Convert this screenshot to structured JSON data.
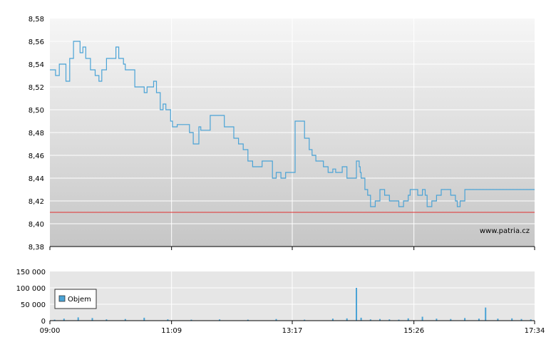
{
  "chart_data": [
    {
      "type": "line",
      "x_ticks": [
        "09:00",
        "11:09",
        "13:17",
        "15:26",
        "17:34"
      ],
      "y_ticks": [
        "8,58",
        "8,56",
        "8,54",
        "8,52",
        "8,50",
        "8,48",
        "8,46",
        "8,44",
        "8,42",
        "8,40",
        "8,38"
      ],
      "ylim": [
        8.38,
        8.58
      ],
      "grid": true,
      "reference_line": 8.41,
      "watermark": "www.patria.cz",
      "colors": {
        "series": "#4aa3d6",
        "reference": "#e03030",
        "grid": "#ffffff",
        "background_top": "#f6f6f6",
        "background_bottom": "#c6c6c6"
      },
      "series": [
        {
          "x": [
            "09:00",
            "09:03",
            "09:06",
            "09:10",
            "09:13",
            "09:17",
            "09:21",
            "09:25",
            "09:32",
            "09:35",
            "09:37",
            "09:38",
            "09:40",
            "09:43",
            "09:48",
            "09:52",
            "09:55",
            "10:00",
            "10:05",
            "10:08",
            "10:10",
            "10:13",
            "10:18",
            "10:20",
            "10:25",
            "10:30",
            "10:35",
            "10:40",
            "10:43",
            "10:46",
            "10:48",
            "10:50",
            "10:53",
            "10:57",
            "11:00",
            "11:03",
            "11:08",
            "11:10",
            "11:13",
            "11:15",
            "11:25",
            "11:28",
            "11:32",
            "11:35",
            "11:38",
            "11:40",
            "11:47",
            "11:50",
            "11:57",
            "12:05",
            "12:15",
            "12:20",
            "12:25",
            "12:30",
            "12:35",
            "12:45",
            "12:50",
            "12:56",
            "13:00",
            "13:05",
            "13:10",
            "13:15",
            "13:20",
            "13:30",
            "13:35",
            "13:38",
            "13:42",
            "13:46",
            "13:50",
            "13:55",
            "14:00",
            "14:03",
            "14:05",
            "14:07",
            "14:10",
            "14:15",
            "14:20",
            "14:25",
            "14:27",
            "14:28",
            "14:29",
            "14:30",
            "14:32",
            "14:34",
            "14:37",
            "14:40",
            "14:45",
            "14:50",
            "14:55",
            "15:00",
            "15:05",
            "15:10",
            "15:15",
            "15:20",
            "15:22",
            "15:26",
            "15:30",
            "15:35",
            "15:38",
            "15:40",
            "15:45",
            "15:50",
            "15:55",
            "15:58",
            "16:00",
            "16:05",
            "16:10",
            "16:12",
            "16:15",
            "16:20",
            "16:25",
            "16:30",
            "16:35",
            "16:40",
            "16:45",
            "16:50",
            "16:55",
            "17:00",
            "17:05",
            "17:10",
            "17:15",
            "17:20",
            "17:25",
            "17:30",
            "17:34"
          ],
          "values": [
            8.535,
            8.535,
            8.53,
            8.54,
            8.54,
            8.525,
            8.545,
            8.56,
            8.55,
            8.555,
            8.555,
            8.545,
            8.545,
            8.535,
            8.53,
            8.525,
            8.535,
            8.545,
            8.545,
            8.545,
            8.555,
            8.545,
            8.54,
            8.535,
            8.535,
            8.52,
            8.52,
            8.515,
            8.52,
            8.52,
            8.52,
            8.525,
            8.515,
            8.5,
            8.505,
            8.5,
            8.49,
            8.485,
            8.485,
            8.487,
            8.487,
            8.48,
            8.47,
            8.47,
            8.485,
            8.482,
            8.482,
            8.495,
            8.495,
            8.485,
            8.475,
            8.47,
            8.465,
            8.455,
            8.45,
            8.455,
            8.455,
            8.44,
            8.445,
            8.44,
            8.445,
            8.445,
            8.49,
            8.475,
            8.465,
            8.46,
            8.455,
            8.455,
            8.45,
            8.445,
            8.448,
            8.445,
            8.445,
            8.445,
            8.45,
            8.44,
            8.44,
            8.455,
            8.455,
            8.45,
            8.445,
            8.44,
            8.44,
            8.43,
            8.425,
            8.415,
            8.42,
            8.43,
            8.425,
            8.42,
            8.42,
            8.415,
            8.42,
            8.425,
            8.43,
            8.43,
            8.425,
            8.43,
            8.425,
            8.415,
            8.42,
            8.425,
            8.43,
            8.43,
            8.43,
            8.425,
            8.42,
            8.415,
            8.42,
            8.43,
            8.43,
            8.43,
            8.43,
            8.43,
            8.43,
            8.43,
            8.43,
            8.43,
            8.43,
            8.43,
            8.43,
            8.43,
            8.43,
            8.43,
            8.43
          ]
        }
      ]
    },
    {
      "type": "bar",
      "x_ticks": [
        "09:00",
        "11:09",
        "13:17",
        "15:26",
        "17:34"
      ],
      "y_ticks": [
        "150 000",
        "100 000",
        "50 000",
        "0"
      ],
      "ylim": [
        0,
        150000
      ],
      "grid": true,
      "legend": {
        "placement": "left",
        "entries": [
          "Objem"
        ]
      },
      "colors": {
        "series": "#4aa3d6",
        "grid": "#ffffff",
        "background": "#e6e6e6"
      },
      "series": [
        {
          "name": "Objem",
          "x": [
            "09:05",
            "09:15",
            "09:30",
            "09:45",
            "10:00",
            "10:20",
            "10:40",
            "11:05",
            "11:30",
            "12:00",
            "12:30",
            "13:00",
            "13:30",
            "14:00",
            "14:15",
            "14:25",
            "14:30",
            "14:40",
            "14:50",
            "15:00",
            "15:10",
            "15:20",
            "15:35",
            "15:50",
            "16:05",
            "16:20",
            "16:35",
            "16:42",
            "16:55",
            "17:10",
            "17:20",
            "17:30"
          ],
          "values": [
            3000,
            6000,
            10000,
            8000,
            4000,
            5000,
            9000,
            4000,
            3000,
            4000,
            3000,
            5000,
            3000,
            6000,
            7000,
            100000,
            9000,
            4000,
            5000,
            4000,
            3000,
            7000,
            12000,
            6000,
            5000,
            8000,
            6000,
            40000,
            6000,
            7000,
            5000,
            4000
          ]
        }
      ]
    }
  ]
}
